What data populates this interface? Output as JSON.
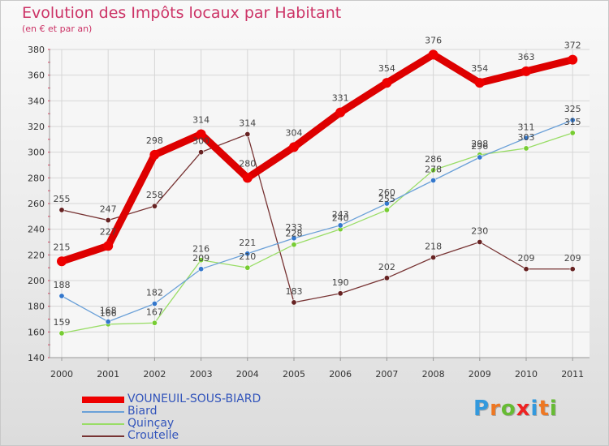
{
  "chart_data": {
    "type": "line",
    "title": "Evolution des Impôts locaux par Habitant",
    "subtitle": "(en € et par an)",
    "xlabel": "",
    "ylabel": "",
    "x": [
      "2000",
      "2001",
      "2002",
      "2003",
      "2004",
      "2005",
      "2006",
      "2007",
      "2008",
      "2009",
      "2010",
      "2011"
    ],
    "ylim": [
      140,
      380
    ],
    "yticks": [
      140,
      160,
      180,
      200,
      220,
      240,
      260,
      280,
      300,
      320,
      340,
      360,
      380
    ],
    "grid": true,
    "legend_position": "bottom-left",
    "series": [
      {
        "name": "VOUNEUIL-SOUS-BIARD",
        "color": "#ee0000",
        "values": [
          215,
          227,
          298,
          314,
          280,
          304,
          331,
          354,
          376,
          354,
          363,
          372
        ]
      },
      {
        "name": "Biard",
        "color": "#6aa0d8",
        "values": [
          188,
          168,
          182,
          209,
          221,
          233,
          243,
          260,
          278,
          296,
          311,
          325
        ]
      },
      {
        "name": "Quinçay",
        "color": "#99dd66",
        "values": [
          159,
          166,
          167,
          216,
          210,
          228,
          240,
          255,
          286,
          298,
          303,
          315
        ]
      },
      {
        "name": "Croutelle",
        "color": "#773333",
        "values": [
          255,
          247,
          258,
          300,
          314,
          183,
          190,
          202,
          218,
          230,
          209,
          209
        ]
      }
    ]
  },
  "logo": {
    "letters": [
      "P",
      "r",
      "o",
      "x",
      "i",
      "t",
      "i"
    ],
    "colors": [
      "#3399dd",
      "#ee7722",
      "#66bb33",
      "#ee2222",
      "#3399dd",
      "#ee7722",
      "#66bb33"
    ]
  }
}
